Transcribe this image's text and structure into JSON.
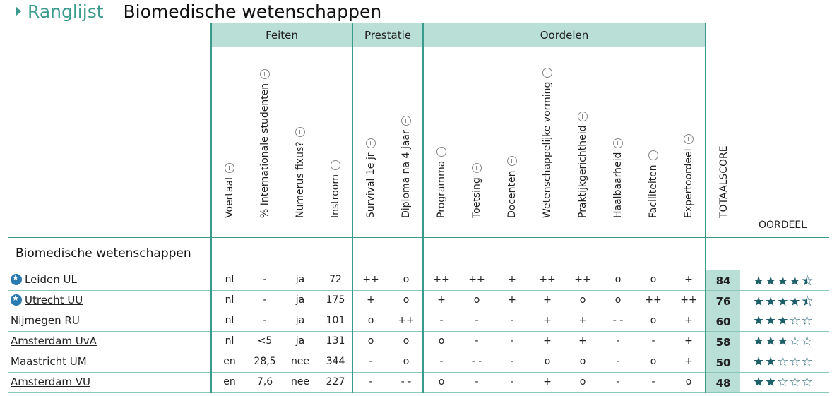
{
  "header": {
    "ranglijst": "Ranglijst",
    "program": "Biomedische wetenschappen"
  },
  "groups": {
    "feiten": "Feiten",
    "prestatie": "Prestatie",
    "oordelen": "Oordelen"
  },
  "columns": {
    "voertaal": "Voertaal",
    "internationaal": "% Internationale studenten",
    "numerus": "Numerus fixus?",
    "instroom": "Instroom",
    "survival": "Survival 1e jr",
    "diploma": "Diploma na 4 jaar",
    "programma": "Programma",
    "toetsing": "Toetsing",
    "docenten": "Docenten",
    "wetenschap": "Wetenschappelijke vorming",
    "praktijk": "Praktijkgerichtheid",
    "haalbaarheid": "Haalbaarheid",
    "faciliteiten": "Faciliteiten",
    "expert": "Expertoordeel",
    "totaal": "TOTAALSCORE",
    "oordeel": "OORDEEL"
  },
  "section_title": "Biomedische wetenschappen",
  "rows": [
    {
      "name": "Leiden UL",
      "top": true,
      "c": [
        "nl",
        "-",
        "ja",
        "72",
        "++",
        "o",
        "++",
        "++",
        "+",
        "++",
        "++",
        "o",
        "o",
        "+"
      ],
      "score": "84",
      "stars": 4.5
    },
    {
      "name": "Utrecht UU",
      "top": true,
      "c": [
        "nl",
        "-",
        "ja",
        "175",
        "+",
        "o",
        "+",
        "o",
        "+",
        "+",
        "o",
        "o",
        "++",
        "++"
      ],
      "score": "76",
      "stars": 4.5
    },
    {
      "name": "Nijmegen RU",
      "top": false,
      "c": [
        "nl",
        "-",
        "ja",
        "101",
        "o",
        "++",
        "-",
        "-",
        "-",
        "+",
        "+",
        "- -",
        "o",
        "+"
      ],
      "score": "60",
      "stars": 3
    },
    {
      "name": "Amsterdam UvA",
      "top": false,
      "c": [
        "nl",
        "<5",
        "ja",
        "131",
        "o",
        "o",
        "o",
        "-",
        "-",
        "+",
        "+",
        "-",
        "-",
        "+"
      ],
      "score": "58",
      "stars": 3
    },
    {
      "name": "Maastricht UM",
      "top": false,
      "c": [
        "en",
        "28,5",
        "nee",
        "344",
        "-",
        "o",
        "-",
        "- -",
        "-",
        "o",
        "o",
        "-",
        "o",
        "+"
      ],
      "score": "50",
      "stars": 2
    },
    {
      "name": "Amsterdam VU",
      "top": false,
      "c": [
        "en",
        "7,6",
        "nee",
        "227",
        "-",
        "- -",
        "o",
        "-",
        "-",
        "+",
        "o",
        "-",
        "-",
        "o"
      ],
      "score": "48",
      "stars": 2
    }
  ],
  "colors": {
    "accent": "#3a9a8c",
    "band": "#b9dfd6",
    "star": "#1f5f6a"
  }
}
